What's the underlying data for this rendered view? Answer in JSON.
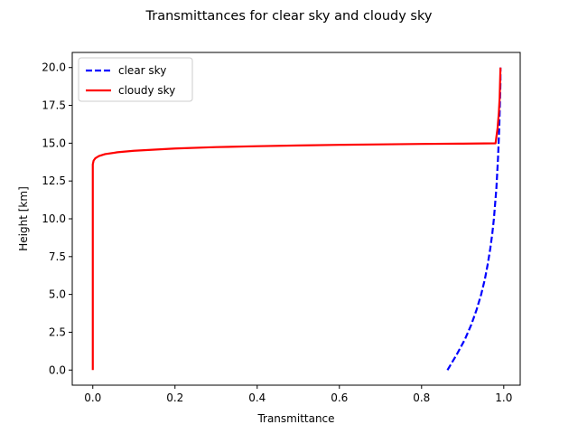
{
  "chart_data": {
    "type": "line",
    "title": "Transmittances for clear sky and cloudy sky",
    "xlabel": "Transmittance",
    "ylabel": "Height [km]",
    "xlim": [
      -0.05,
      1.04
    ],
    "ylim": [
      -1.0,
      21.0
    ],
    "xticks": [
      0.0,
      0.2,
      0.4,
      0.6,
      0.8,
      1.0
    ],
    "xtick_labels": [
      "0.0",
      "0.2",
      "0.4",
      "0.6",
      "0.8",
      "1.0"
    ],
    "yticks": [
      0.0,
      2.5,
      5.0,
      7.5,
      10.0,
      12.5,
      15.0,
      17.5,
      20.0
    ],
    "ytick_labels": [
      "0.0",
      "2.5",
      "5.0",
      "7.5",
      "10.0",
      "12.5",
      "15.0",
      "17.5",
      "20.0"
    ],
    "grid": false,
    "legend_position": "upper-left",
    "series": [
      {
        "name": "clear sky",
        "color": "#0000ff",
        "style": "dashed",
        "points": [
          [
            0.863,
            0.0
          ],
          [
            0.885,
            1.0
          ],
          [
            0.905,
            2.0
          ],
          [
            0.921,
            3.0
          ],
          [
            0.934,
            4.0
          ],
          [
            0.945,
            5.0
          ],
          [
            0.954,
            6.0
          ],
          [
            0.961,
            7.0
          ],
          [
            0.967,
            8.0
          ],
          [
            0.972,
            9.0
          ],
          [
            0.976,
            10.0
          ],
          [
            0.979,
            11.0
          ],
          [
            0.982,
            12.0
          ],
          [
            0.984,
            13.0
          ],
          [
            0.986,
            14.0
          ],
          [
            0.9875,
            15.0
          ],
          [
            0.989,
            16.0
          ],
          [
            0.99,
            17.0
          ],
          [
            0.991,
            18.0
          ],
          [
            0.992,
            19.0
          ],
          [
            0.992,
            20.0
          ]
        ]
      },
      {
        "name": "cloudy sky",
        "color": "#ff0000",
        "style": "solid",
        "points": [
          [
            0.0,
            0.0
          ],
          [
            0.0,
            5.0
          ],
          [
            0.0,
            10.0
          ],
          [
            0.0,
            13.0
          ],
          [
            0.0,
            13.6
          ],
          [
            0.002,
            13.85
          ],
          [
            0.006,
            14.0
          ],
          [
            0.015,
            14.15
          ],
          [
            0.03,
            14.28
          ],
          [
            0.06,
            14.4
          ],
          [
            0.1,
            14.5
          ],
          [
            0.2,
            14.65
          ],
          [
            0.3,
            14.74
          ],
          [
            0.4,
            14.8
          ],
          [
            0.5,
            14.85
          ],
          [
            0.6,
            14.89
          ],
          [
            0.7,
            14.92
          ],
          [
            0.8,
            14.95
          ],
          [
            0.9,
            14.97
          ],
          [
            0.98,
            14.99
          ],
          [
            0.985,
            16.0
          ],
          [
            0.988,
            17.0
          ],
          [
            0.99,
            18.0
          ],
          [
            0.991,
            19.0
          ],
          [
            0.992,
            20.0
          ]
        ]
      }
    ]
  }
}
